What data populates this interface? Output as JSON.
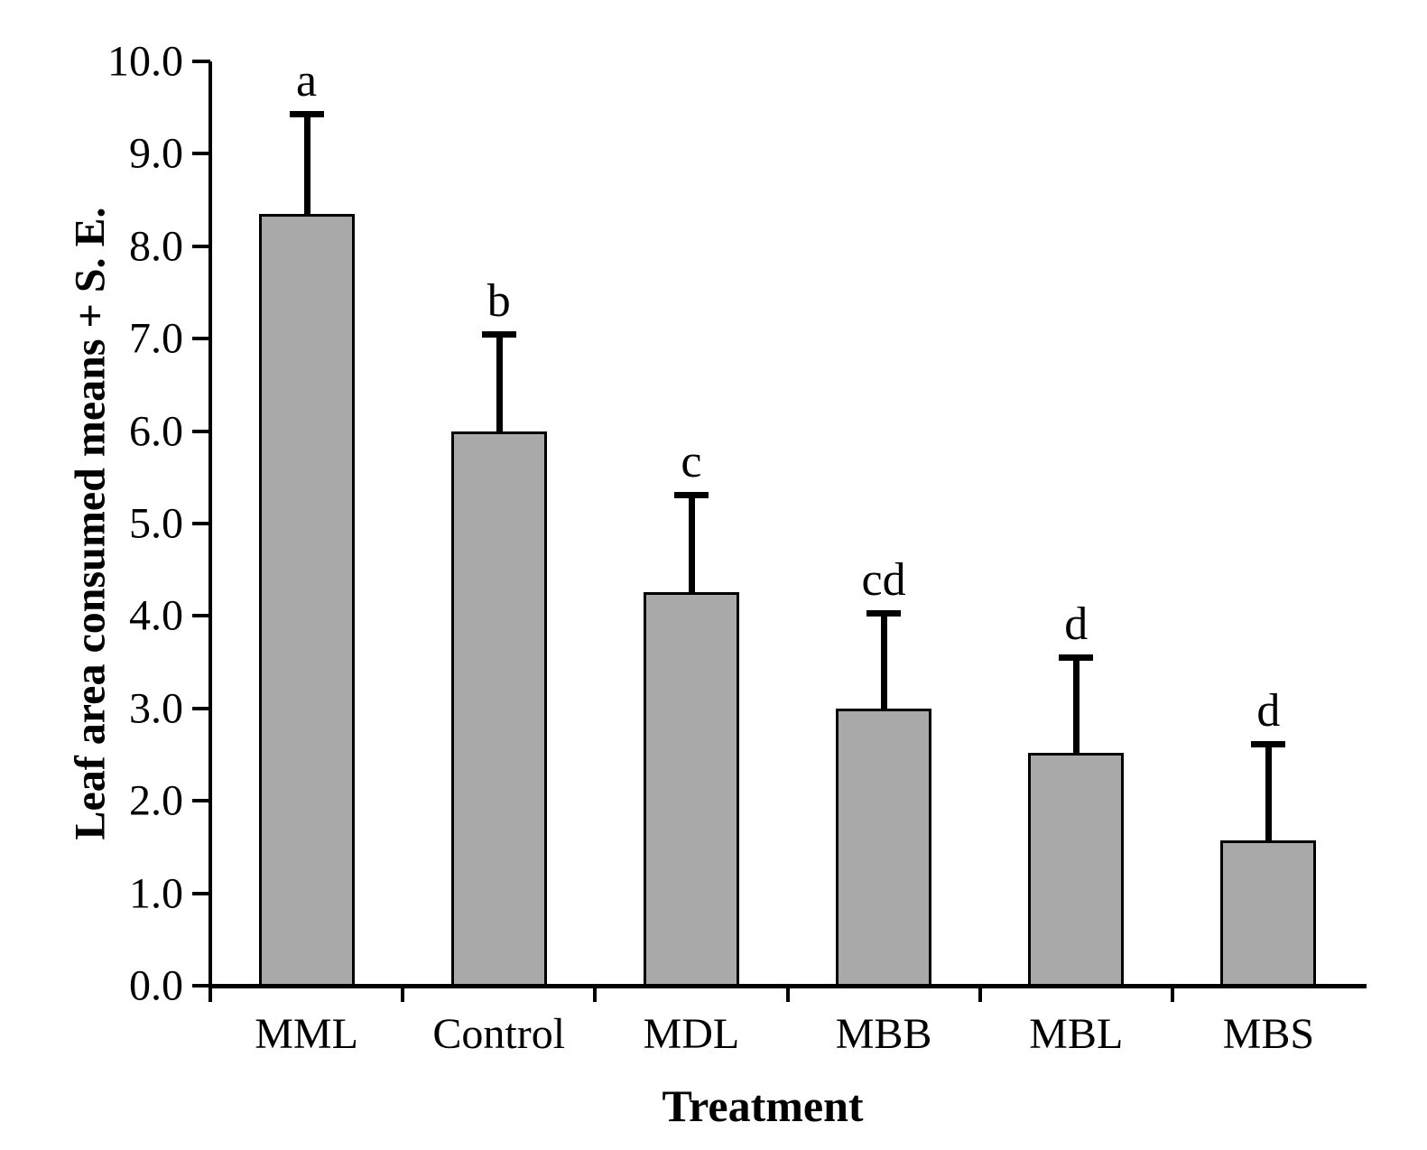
{
  "chart_data": {
    "type": "bar",
    "title": "",
    "xlabel": "Treatment",
    "ylabel": "Leaf area consumed means + S. E.",
    "categories": [
      "MML",
      "Control",
      "MDL",
      "MBB",
      "MBL",
      "MBS"
    ],
    "values": [
      8.35,
      6.0,
      4.26,
      3.0,
      2.52,
      1.57
    ],
    "error_bar_tops": [
      9.43,
      7.05,
      5.31,
      4.03,
      3.55,
      2.62
    ],
    "sig_letters": [
      "a",
      "b",
      "c",
      "cd",
      "d",
      "d"
    ],
    "ylim": [
      0.0,
      10.0
    ],
    "ytick_step": 1.0,
    "ytick_labels": [
      "0.0",
      "1.0",
      "2.0",
      "3.0",
      "4.0",
      "5.0",
      "6.0",
      "7.0",
      "8.0",
      "9.0",
      "10.0"
    ],
    "grid": false,
    "legend": null,
    "bar_fill_color": "#a9a9a9",
    "bar_border_color": "#000000",
    "axis_color": "#000000",
    "background_color": "#ffffff"
  }
}
